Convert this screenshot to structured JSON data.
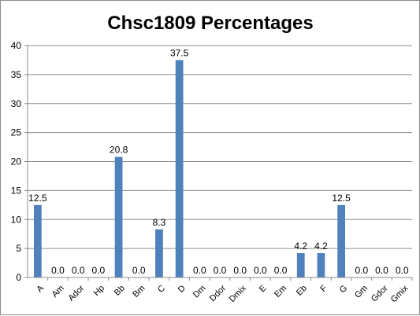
{
  "chart_data": {
    "type": "bar",
    "title": "Chsc1809 Percentages",
    "xlabel": "",
    "ylabel": "",
    "ylim": [
      0,
      40
    ],
    "yticks": [
      0,
      5,
      10,
      15,
      20,
      25,
      30,
      35,
      40
    ],
    "grid": true,
    "legend": "none",
    "bar_color": "#4f81bd",
    "categories": [
      "A",
      "Am",
      "Ador",
      "Hp",
      "Bb",
      "Bm",
      "C",
      "D",
      "Dm",
      "Ddor",
      "Dmix",
      "E",
      "Em",
      "Eb",
      "F",
      "G",
      "Gm",
      "Gdor",
      "Gmix"
    ],
    "values": [
      12.5,
      0.0,
      0.0,
      0.0,
      20.8,
      0.0,
      8.3,
      37.5,
      0.0,
      0.0,
      0.0,
      0.0,
      0.0,
      4.2,
      4.2,
      12.5,
      0.0,
      0.0,
      0.0
    ],
    "data_labels": [
      "12.5",
      "0.0",
      "0.0",
      "0.0",
      "20.8",
      "0.0",
      "8.3",
      "37.5",
      "0.0",
      "0.0",
      "0.0",
      "0.0",
      "0.0",
      "4.2",
      "4.2",
      "12.5",
      "0.0",
      "0.0",
      "0.0"
    ]
  }
}
